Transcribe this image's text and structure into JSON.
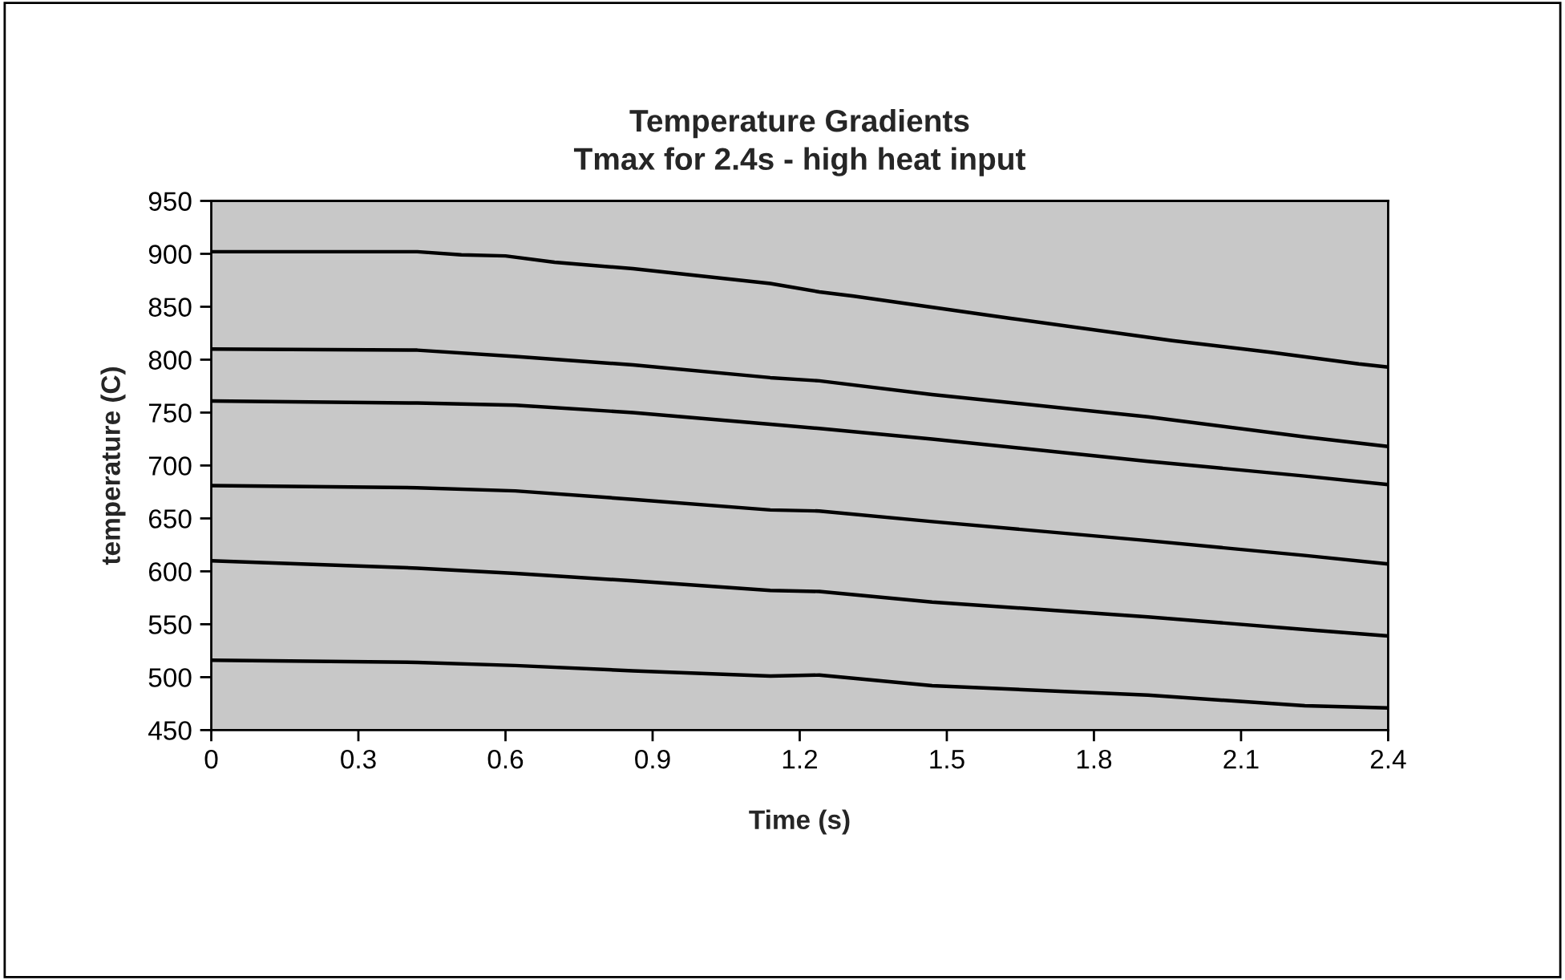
{
  "chart_data": {
    "type": "line",
    "title": "Temperature Gradients\nTmax for 2.4s - high heat input",
    "xlabel": "Time (s)",
    "ylabel": "temperature (C)",
    "xlim": [
      0,
      2.4
    ],
    "xticks": [
      0,
      0.3,
      0.6,
      0.9,
      1.2,
      1.5,
      1.8,
      2.1,
      2.4
    ],
    "ylim": [
      450,
      950
    ],
    "yticks": [
      450,
      500,
      550,
      600,
      650,
      700,
      750,
      800,
      850,
      900,
      950
    ],
    "marker": "none",
    "line_style": "solid",
    "series": [
      {
        "color": "#000000",
        "x": [
          0,
          0.42,
          0.51,
          0.6,
          0.7,
          0.86,
          1.0,
          1.14,
          1.24,
          1.31,
          1.63,
          1.96,
          2.16,
          2.34,
          2.4
        ],
        "values": [
          902,
          902,
          899,
          898,
          892,
          886,
          879,
          872,
          864,
          860,
          839,
          818,
          807,
          796,
          793
        ]
      },
      {
        "color": "#000000",
        "x": [
          0,
          0.42,
          0.62,
          0.86,
          1.14,
          1.24,
          1.47,
          1.91,
          2.23,
          2.4
        ],
        "values": [
          810,
          809,
          803,
          795,
          783,
          780,
          767,
          746,
          727,
          718
        ]
      },
      {
        "color": "#000000",
        "x": [
          0,
          0.42,
          0.62,
          0.86,
          1.14,
          1.24,
          1.47,
          1.91,
          2.23,
          2.4
        ],
        "values": [
          761,
          759,
          757,
          750,
          739,
          735,
          725,
          704,
          690,
          682
        ]
      },
      {
        "color": "#000000",
        "x": [
          0,
          0.42,
          0.62,
          0.86,
          1.14,
          1.24,
          1.47,
          1.91,
          2.23,
          2.4
        ],
        "values": [
          681,
          679,
          676,
          668,
          658,
          657,
          647,
          629,
          615,
          607
        ]
      },
      {
        "color": "#000000",
        "x": [
          0,
          0.42,
          0.62,
          0.86,
          1.14,
          1.24,
          1.47,
          1.91,
          2.23,
          2.4
        ],
        "values": [
          610,
          603,
          598,
          591,
          582,
          581,
          571,
          557,
          545,
          539
        ]
      },
      {
        "color": "#000000",
        "x": [
          0,
          0.42,
          0.62,
          0.86,
          1.14,
          1.24,
          1.47,
          1.91,
          2.23,
          2.4
        ],
        "values": [
          516,
          514,
          511,
          506,
          501,
          502,
          492,
          483,
          473,
          471
        ]
      }
    ]
  }
}
